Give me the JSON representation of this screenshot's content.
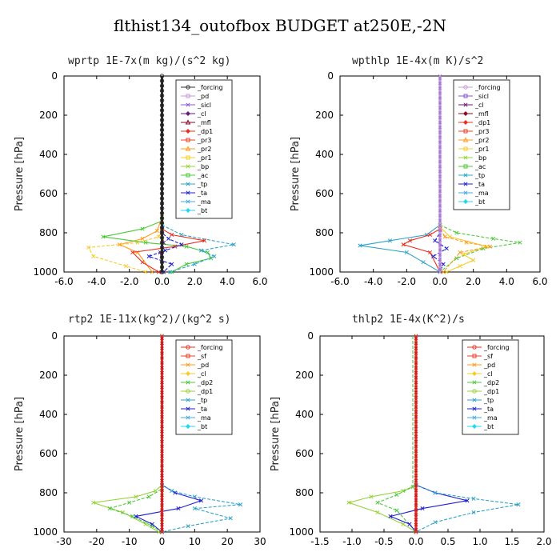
{
  "figure": {
    "title": "flthist134_outofbox  BUDGET at250E,-2N"
  },
  "chart_data": [
    {
      "type": "line",
      "title": "wprtp  1E-7x(m kg)/(s^2 kg)",
      "ylabel": "Pressure [hPa]",
      "xlim": [
        -6,
        6
      ],
      "ylim": [
        0,
        1000
      ],
      "xticks": [
        "-6.0",
        "-4.0",
        "-2.0",
        "0.0",
        "2.0",
        "4.0",
        "6.0"
      ],
      "yticks": [
        "0",
        "200",
        "400",
        "600",
        "800",
        "1000"
      ],
      "series": [
        {
          "name": "_forcing",
          "color": "#333333",
          "marker": "o"
        },
        {
          "name": "_pd",
          "color": "#c89adc",
          "marker": "s"
        },
        {
          "name": "_sicl",
          "color": "#8a5ad6",
          "marker": "x"
        },
        {
          "name": "_cl",
          "color": "#6a1a7a",
          "marker": "d"
        },
        {
          "name": "_mfl",
          "color": "#8b0a2a",
          "marker": "t"
        },
        {
          "name": "_dp1",
          "color": "#e83020",
          "marker": "d"
        },
        {
          "name": "_pr3",
          "color": "#e8402a",
          "marker": "s"
        },
        {
          "name": "_pr2",
          "color": "#ff9a1e",
          "marker": "t"
        },
        {
          "name": "_pr1",
          "color": "#f5cc2a",
          "marker": "s"
        },
        {
          "name": "_bp",
          "color": "#98d23a",
          "marker": "x"
        },
        {
          "name": "_ac",
          "color": "#4ec83a",
          "marker": "s"
        },
        {
          "name": "_tp",
          "color": "#2ea4c8",
          "marker": "x"
        },
        {
          "name": "_ta",
          "color": "#2222cc",
          "marker": "x"
        },
        {
          "name": "_ma",
          "color": "#44aadd",
          "marker": "x"
        },
        {
          "name": "_bt",
          "color": "#22d8f0",
          "marker": "d"
        }
      ],
      "profiles": [
        {
          "color": "#ff9a1e",
          "x": [
            0,
            0,
            -0.3,
            -1.2,
            -2.6,
            -1.5,
            -0.6
          ],
          "y": [
            0,
            720,
            790,
            830,
            860,
            900,
            1000
          ]
        },
        {
          "color": "#f5cc2a",
          "x": [
            0,
            0,
            -0.2,
            -1.5,
            -4.5,
            -4.2,
            -2.2,
            -1.0
          ],
          "y": [
            0,
            760,
            820,
            850,
            875,
            920,
            970,
            1000
          ]
        },
        {
          "color": "#4ec83a",
          "x": [
            0,
            0,
            -1.2,
            -3.6,
            -1.0,
            1.5,
            2.8,
            3.0,
            1.5,
            0.6
          ],
          "y": [
            0,
            740,
            780,
            820,
            850,
            870,
            900,
            930,
            960,
            1000
          ]
        },
        {
          "color": "#2ea4c8",
          "x": [
            0,
            0,
            1.2,
            4.4,
            2.4,
            3.2,
            2.0,
            0.5
          ],
          "y": [
            0,
            760,
            810,
            860,
            890,
            920,
            960,
            1000
          ]
        },
        {
          "color": "#e83020",
          "x": [
            0,
            0,
            0.6,
            2.6,
            0.8,
            -1.8,
            -1.2,
            -0.2
          ],
          "y": [
            0,
            780,
            810,
            840,
            870,
            900,
            950,
            1000
          ]
        },
        {
          "color": "#2222cc",
          "x": [
            0,
            0,
            0.4,
            1.2,
            0.2,
            -0.8,
            0.6,
            0.1
          ],
          "y": [
            0,
            800,
            830,
            860,
            890,
            920,
            960,
            1000
          ]
        },
        {
          "color": "#6a1a7a",
          "x": [
            0,
            0,
            0.1,
            -0.1,
            0
          ],
          "y": [
            0,
            800,
            850,
            900,
            1000
          ]
        }
      ]
    },
    {
      "type": "line",
      "title": "wpthlp  1E-4x(m K)/s^2",
      "ylabel": "Pressure [hPa]",
      "xlim": [
        -6,
        6
      ],
      "ylim": [
        0,
        1000
      ],
      "xticks": [
        "-6.0",
        "-4.0",
        "-2.0",
        "0.0",
        "2.0",
        "4.0",
        "6.0"
      ],
      "yticks": [
        "0",
        "200",
        "400",
        "600",
        "800",
        "1000"
      ],
      "series": [
        {
          "name": "_forcing",
          "color": "#c89adc",
          "marker": "o"
        },
        {
          "name": "_sicl",
          "color": "#8a5ad6",
          "marker": "s"
        },
        {
          "name": "_cl",
          "color": "#6a1a7a",
          "marker": "x"
        },
        {
          "name": "_mfl",
          "color": "#8b0a2a",
          "marker": "d"
        },
        {
          "name": "_dp1",
          "color": "#e83020",
          "marker": "d"
        },
        {
          "name": "_pr3",
          "color": "#e8402a",
          "marker": "s"
        },
        {
          "name": "_pr2",
          "color": "#ff9a1e",
          "marker": "t"
        },
        {
          "name": "_pr1",
          "color": "#f5cc2a",
          "marker": "s"
        },
        {
          "name": "_bp",
          "color": "#98d23a",
          "marker": "x"
        },
        {
          "name": "_ac",
          "color": "#4ec83a",
          "marker": "s"
        },
        {
          "name": "_tp",
          "color": "#2ea4c8",
          "marker": "x"
        },
        {
          "name": "_ta",
          "color": "#2222cc",
          "marker": "x"
        },
        {
          "name": "_ma",
          "color": "#44aadd",
          "marker": "x"
        },
        {
          "name": "_bt",
          "color": "#22d8f0",
          "marker": "d"
        }
      ],
      "profiles": [
        {
          "color": "#2ea4c8",
          "x": [
            0,
            0,
            -0.8,
            -3.0,
            -4.8,
            -2.0,
            -1.0,
            0
          ],
          "y": [
            0,
            760,
            810,
            840,
            865,
            900,
            950,
            1000
          ]
        },
        {
          "color": "#4ec83a",
          "x": [
            0,
            0,
            1.0,
            3.2,
            4.8,
            2.6,
            1.0,
            0
          ],
          "y": [
            0,
            760,
            800,
            830,
            850,
            880,
            930,
            1000
          ]
        },
        {
          "color": "#f5cc2a",
          "x": [
            0,
            0,
            0.6,
            2.8,
            1.4,
            2.0,
            1.2,
            0.4
          ],
          "y": [
            0,
            770,
            820,
            870,
            910,
            940,
            970,
            1000
          ]
        },
        {
          "color": "#ff9a1e",
          "x": [
            0,
            0,
            0.3,
            1.6,
            3.0,
            1.2,
            0.2
          ],
          "y": [
            0,
            780,
            820,
            850,
            870,
            900,
            1000
          ]
        },
        {
          "color": "#e83020",
          "x": [
            0,
            0,
            -0.6,
            -1.8,
            -2.2,
            -0.6,
            0
          ],
          "y": [
            0,
            780,
            810,
            840,
            860,
            900,
            1000
          ]
        },
        {
          "color": "#2222cc",
          "x": [
            0,
            0,
            -0.3,
            0.4,
            -0.4,
            0.2,
            0
          ],
          "y": [
            0,
            800,
            840,
            880,
            920,
            960,
            1000
          ]
        }
      ]
    },
    {
      "type": "line",
      "title": "rtp2  1E-11x(kg^2)/(kg^2 s)",
      "ylabel": "Pressure [hPa]",
      "xlim": [
        -30,
        30
      ],
      "ylim": [
        0,
        1000
      ],
      "xticks": [
        "-30",
        "-20",
        "-10",
        "0",
        "10",
        "20",
        "30"
      ],
      "yticks": [
        "0",
        "200",
        "400",
        "600",
        "800",
        "1000"
      ],
      "series": [
        {
          "name": "_forcing",
          "color": "#e83020",
          "marker": "o"
        },
        {
          "name": "_sf",
          "color": "#e8402a",
          "marker": "s"
        },
        {
          "name": "_pd",
          "color": "#ff9a1e",
          "marker": "x"
        },
        {
          "name": "_cl",
          "color": "#f5cc2a",
          "marker": "d"
        },
        {
          "name": "_dp2",
          "color": "#4ec83a",
          "marker": "x"
        },
        {
          "name": "_dp1",
          "color": "#98d23a",
          "marker": "o"
        },
        {
          "name": "_tp",
          "color": "#2ea4c8",
          "marker": "x"
        },
        {
          "name": "_ta",
          "color": "#2222cc",
          "marker": "x"
        },
        {
          "name": "_ma",
          "color": "#44aadd",
          "marker": "x"
        },
        {
          "name": "_bt",
          "color": "#22d8f0",
          "marker": "d"
        }
      ],
      "profiles": [
        {
          "color": "#98d23a",
          "x": [
            0,
            0,
            -2,
            -8,
            -21,
            -12,
            -5,
            -1
          ],
          "y": [
            0,
            760,
            790,
            820,
            850,
            900,
            960,
            1000
          ]
        },
        {
          "color": "#4ec83a",
          "x": [
            0,
            0,
            -4,
            -10,
            -16,
            -9,
            -3,
            0
          ],
          "y": [
            0,
            780,
            820,
            850,
            880,
            920,
            970,
            1000
          ]
        },
        {
          "color": "#2222cc",
          "x": [
            0,
            0,
            4,
            12,
            5,
            -8,
            -3,
            0
          ],
          "y": [
            0,
            760,
            800,
            840,
            880,
            920,
            960,
            1000
          ]
        },
        {
          "color": "#2ea4c8",
          "x": [
            0,
            0,
            3,
            10,
            24,
            10,
            21,
            8,
            0
          ],
          "y": [
            0,
            760,
            790,
            820,
            860,
            880,
            930,
            970,
            1000
          ]
        },
        {
          "color": "#e83020",
          "x": [
            0,
            0,
            0,
            0
          ],
          "y": [
            0,
            500,
            900,
            1000
          ]
        }
      ]
    },
    {
      "type": "line",
      "title": "thlp2  1E-4x(K^2)/s",
      "ylabel": "Pressure [hPa]",
      "xlim": [
        -1.5,
        2.0
      ],
      "ylim": [
        0,
        1000
      ],
      "xticks": [
        "-1.5",
        "-1.0",
        "-0.5",
        "0.0",
        "0.5",
        "1.0",
        "1.5",
        "2.0"
      ],
      "yticks": [
        "0",
        "200",
        "400",
        "600",
        "800",
        "1000"
      ],
      "series": [
        {
          "name": "_forcing",
          "color": "#e83020",
          "marker": "o"
        },
        {
          "name": "_sf",
          "color": "#e8402a",
          "marker": "s"
        },
        {
          "name": "_pd",
          "color": "#ff9a1e",
          "marker": "x"
        },
        {
          "name": "_cl",
          "color": "#f5cc2a",
          "marker": "d"
        },
        {
          "name": "_dp2",
          "color": "#4ec83a",
          "marker": "x"
        },
        {
          "name": "_dp1",
          "color": "#98d23a",
          "marker": "o"
        },
        {
          "name": "_tp",
          "color": "#2ea4c8",
          "marker": "x"
        },
        {
          "name": "_ta",
          "color": "#2222cc",
          "marker": "x"
        },
        {
          "name": "_ma",
          "color": "#44aadd",
          "marker": "x"
        },
        {
          "name": "_bt",
          "color": "#22d8f0",
          "marker": "d"
        }
      ],
      "profiles": [
        {
          "color": "#98d23a",
          "x": [
            0,
            0,
            -0.2,
            -0.7,
            -1.05,
            -0.6,
            -0.2,
            0
          ],
          "y": [
            0,
            760,
            790,
            820,
            850,
            900,
            960,
            1000
          ]
        },
        {
          "color": "#4ec83a",
          "x": [
            -0.05,
            -0.05,
            -0.3,
            -0.6,
            -0.3,
            0
          ],
          "y": [
            0,
            770,
            810,
            850,
            890,
            1000
          ]
        },
        {
          "color": "#2222cc",
          "x": [
            0,
            0,
            0.3,
            0.8,
            0.1,
            -0.4,
            -0.1,
            0
          ],
          "y": [
            0,
            760,
            800,
            840,
            880,
            920,
            960,
            1000
          ]
        },
        {
          "color": "#2ea4c8",
          "x": [
            0,
            0,
            0.3,
            0.9,
            1.6,
            0.9,
            0.3,
            0
          ],
          "y": [
            0,
            760,
            800,
            830,
            860,
            900,
            950,
            1000
          ]
        },
        {
          "color": "#e83020",
          "x": [
            0,
            0,
            0,
            0
          ],
          "y": [
            0,
            500,
            900,
            1000
          ]
        }
      ]
    }
  ]
}
